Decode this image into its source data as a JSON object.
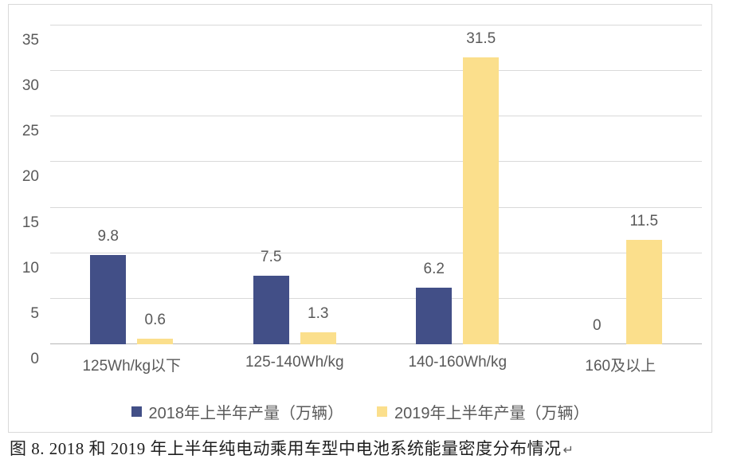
{
  "chart_data": {
    "type": "bar",
    "categories": [
      "125Wh/kg以下",
      "125-140Wh/kg",
      "140-160Wh/kg",
      "160及以上"
    ],
    "series": [
      {
        "name": "2018年上半年产量（万辆）",
        "color": "#424f87",
        "values": [
          9.8,
          7.5,
          6.2,
          0
        ]
      },
      {
        "name": "2019年上半年产量（万辆）",
        "color": "#fbdf8c",
        "values": [
          0.6,
          1.3,
          31.5,
          11.5
        ]
      }
    ],
    "title": "",
    "xlabel": "",
    "ylabel": "",
    "ylim": [
      0,
      35
    ],
    "ytick_step": 5,
    "grid": true,
    "legend_position": "bottom",
    "data_labels": true
  },
  "colors": {
    "gridline": "#d9d9d9",
    "baseline": "#b7b7b7",
    "axis_text": "#595959",
    "frame_border": "#d9d9d9",
    "background": "#ffffff"
  },
  "caption": {
    "text": "图 8. 2018 和 2019 年上半年纯电动乘用车型中电池系统能量密度分布情况",
    "paragraph_mark": "↵"
  }
}
